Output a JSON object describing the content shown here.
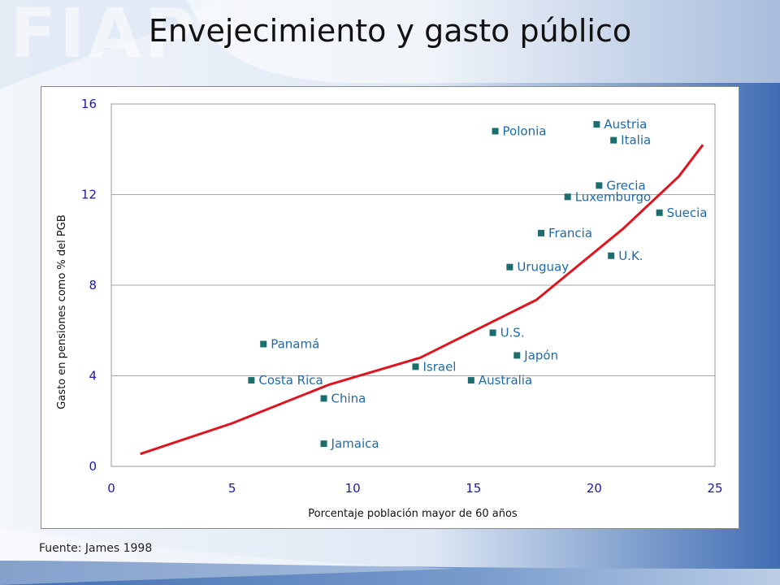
{
  "slide": {
    "title": "Envejecimiento y gasto público",
    "watermark": "FIAP",
    "source": "Fuente: James 1998"
  },
  "colors": {
    "background_gradient_start": "#f3f6fb",
    "background_gradient_end": "#3f6db3",
    "marker": "#1c6e6e",
    "trend": "#e0141e",
    "tick_text": "#1a1aa8",
    "point_label": "#1f6aa6"
  },
  "chart_data": {
    "type": "scatter",
    "xlabel": "Porcentaje población mayor de 60 años",
    "ylabel": "Gasto en pensiones como % del PGB",
    "xlim": [
      0,
      25
    ],
    "ylim": [
      0,
      16
    ],
    "xticks": [
      0,
      5,
      10,
      15,
      20,
      25
    ],
    "yticks": [
      0,
      4,
      8,
      12,
      16
    ],
    "grid": "horizontal",
    "points": [
      {
        "label": "Polonia",
        "x": 15.9,
        "y": 14.8
      },
      {
        "label": "Austria",
        "x": 20.1,
        "y": 15.1
      },
      {
        "label": "Italia",
        "x": 20.8,
        "y": 14.4
      },
      {
        "label": "Grecia",
        "x": 20.2,
        "y": 12.4
      },
      {
        "label": "Luxemburgo",
        "x": 18.9,
        "y": 11.9
      },
      {
        "label": "Suecia",
        "x": 22.7,
        "y": 11.2
      },
      {
        "label": "Francia",
        "x": 17.8,
        "y": 10.3
      },
      {
        "label": "U.K.",
        "x": 20.7,
        "y": 9.3
      },
      {
        "label": "Uruguay",
        "x": 16.5,
        "y": 8.8
      },
      {
        "label": "Panamá",
        "x": 6.3,
        "y": 5.4
      },
      {
        "label": "U.S.",
        "x": 15.8,
        "y": 5.9
      },
      {
        "label": "Japón",
        "x": 16.8,
        "y": 4.9
      },
      {
        "label": "Israel",
        "x": 12.6,
        "y": 4.4
      },
      {
        "label": "Australia",
        "x": 14.9,
        "y": 3.8
      },
      {
        "label": "Costa Rica",
        "x": 5.8,
        "y": 3.8
      },
      {
        "label": "China",
        "x": 8.8,
        "y": 3.0
      },
      {
        "label": "Jamaica",
        "x": 8.8,
        "y": 1.0
      }
    ],
    "trend_line": {
      "x": [
        1.2,
        5.0,
        9.0,
        12.8,
        17.6,
        21.2,
        23.5,
        24.5
      ],
      "y": [
        0.55,
        1.9,
        3.6,
        4.8,
        7.35,
        10.5,
        12.8,
        14.2
      ]
    }
  }
}
